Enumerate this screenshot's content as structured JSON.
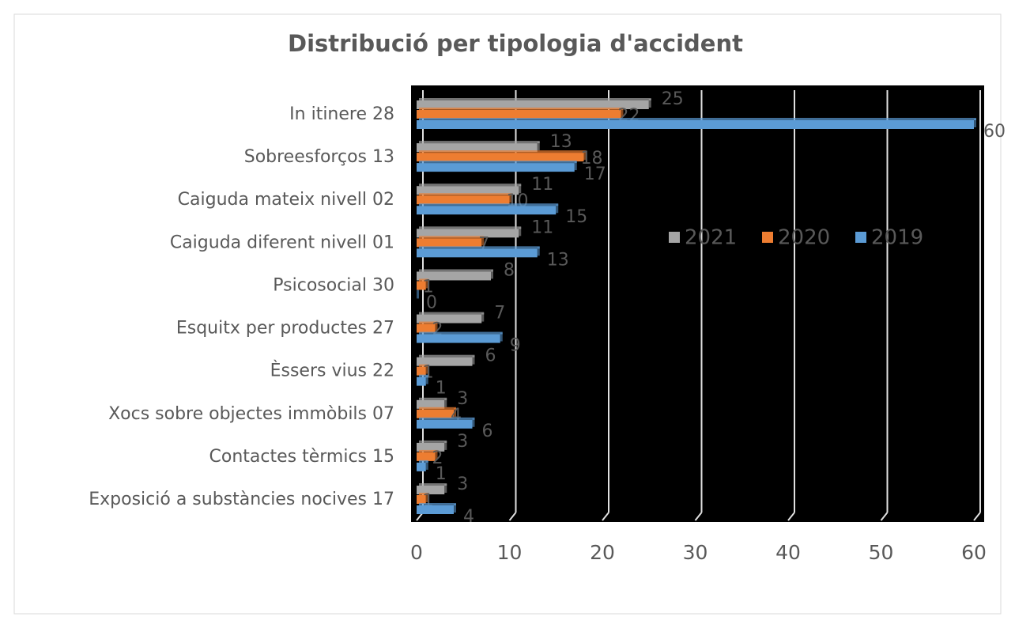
{
  "chart_data": {
    "type": "bar",
    "orientation": "horizontal",
    "title": "Distribució per tipologia d'accident",
    "categories": [
      "In itinere 28",
      "Sobreesforços 13",
      "Caiguda mateix nivell 02",
      "Caiguda diferent nivell 01",
      "Psicosocial 30",
      "Esquitx per productes 27",
      "Èssers vius 22",
      "Xocs sobre objectes immòbils 07",
      "Contactes tèrmics 15",
      "Exposició a substàncies nocives 17"
    ],
    "series": [
      {
        "name": "2021",
        "color": "#a5a5a5",
        "values": [
          25,
          13,
          11,
          11,
          8,
          7,
          6,
          3,
          3,
          3
        ]
      },
      {
        "name": "2020",
        "color": "#ed7d31",
        "values": [
          22,
          18,
          10,
          7,
          1,
          2,
          1,
          4,
          2,
          1
        ]
      },
      {
        "name": "2019",
        "color": "#5b9bd5",
        "values": [
          60,
          17,
          15,
          13,
          0,
          9,
          1,
          6,
          1,
          4
        ]
      }
    ],
    "xlim": [
      0,
      60
    ],
    "xticks": [
      0,
      10,
      20,
      30,
      40,
      50,
      60
    ],
    "grid": true,
    "plot_background": "#000000"
  }
}
